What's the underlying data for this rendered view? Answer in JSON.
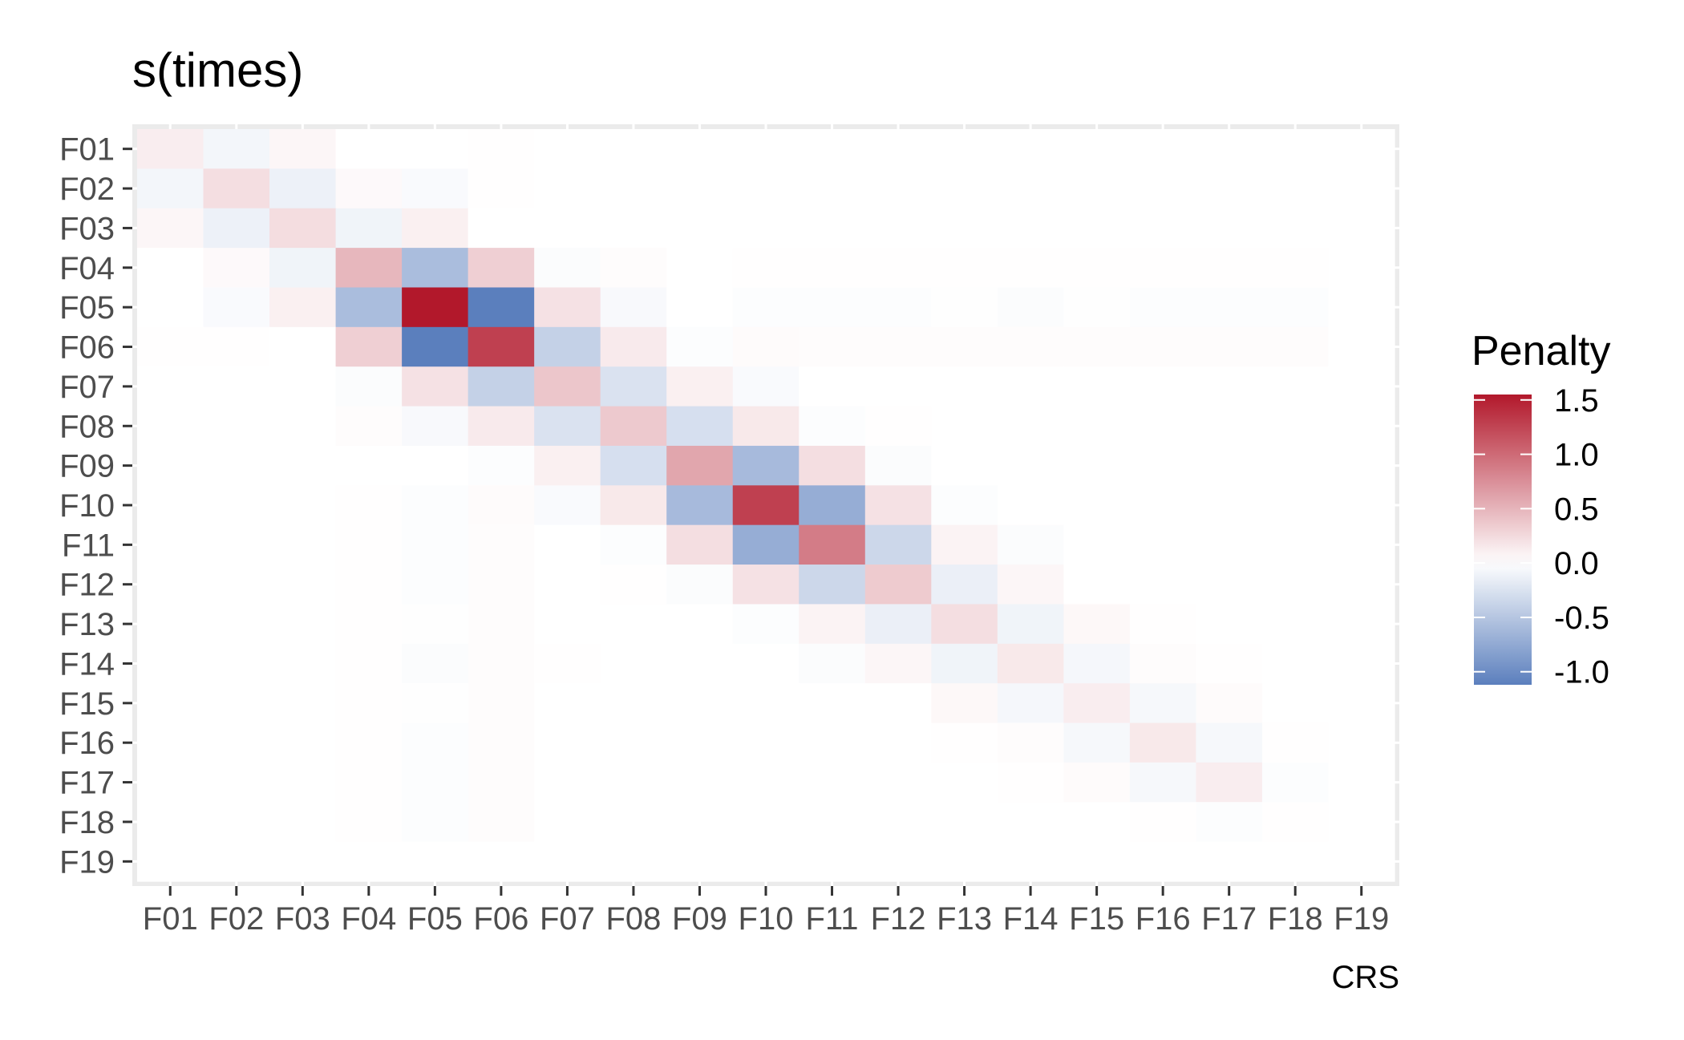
{
  "chart_data": {
    "type": "heatmap",
    "title": "s(times)",
    "xlabel": "CRS",
    "ylabel": "",
    "x_categories": [
      "F01",
      "F02",
      "F03",
      "F04",
      "F05",
      "F06",
      "F07",
      "F08",
      "F09",
      "F10",
      "F11",
      "F12",
      "F13",
      "F14",
      "F15",
      "F16",
      "F17",
      "F18",
      "F19"
    ],
    "y_categories": [
      "F01",
      "F02",
      "F03",
      "F04",
      "F05",
      "F06",
      "F07",
      "F08",
      "F09",
      "F10",
      "F11",
      "F12",
      "F13",
      "F14",
      "F15",
      "F16",
      "F17",
      "F18",
      "F19"
    ],
    "y_order": "top-to-bottom",
    "values": [
      [
        0.12,
        -0.08,
        0.06,
        0.0,
        0.0,
        0.01,
        0.0,
        0.0,
        0.0,
        0.0,
        0.0,
        0.0,
        0.0,
        0.0,
        0.0,
        0.0,
        0.0,
        0.0,
        0.0
      ],
      [
        -0.08,
        0.22,
        -0.12,
        0.04,
        -0.04,
        0.01,
        0.0,
        0.0,
        0.0,
        0.0,
        0.0,
        0.0,
        0.0,
        0.0,
        0.0,
        0.0,
        0.0,
        0.0,
        0.0
      ],
      [
        0.06,
        -0.12,
        0.23,
        -0.1,
        0.1,
        0.0,
        0.0,
        0.0,
        0.0,
        0.0,
        0.0,
        0.0,
        0.0,
        0.0,
        0.0,
        0.0,
        0.0,
        0.0,
        0.0
      ],
      [
        0.0,
        0.04,
        -0.1,
        0.48,
        -0.58,
        0.32,
        -0.03,
        0.02,
        0.0,
        0.01,
        0.01,
        0.01,
        0.01,
        0.01,
        0.01,
        0.01,
        0.01,
        0.01,
        0.0
      ],
      [
        0.0,
        -0.04,
        0.1,
        -0.58,
        1.55,
        -1.12,
        0.2,
        -0.05,
        0.0,
        -0.02,
        -0.02,
        -0.02,
        -0.01,
        -0.03,
        -0.01,
        -0.02,
        -0.02,
        -0.02,
        0.0
      ],
      [
        0.01,
        0.01,
        0.0,
        0.32,
        -1.12,
        1.28,
        -0.4,
        0.14,
        -0.02,
        0.03,
        0.02,
        0.02,
        0.02,
        0.02,
        0.02,
        0.02,
        0.02,
        0.02,
        0.0
      ],
      [
        0.0,
        0.0,
        0.0,
        -0.03,
        0.2,
        -0.4,
        0.38,
        -0.25,
        0.1,
        -0.04,
        0.0,
        0.0,
        0.0,
        0.0,
        0.0,
        0.0,
        0.0,
        0.0,
        0.0
      ],
      [
        0.0,
        0.0,
        0.0,
        0.02,
        -0.05,
        0.14,
        -0.25,
        0.36,
        -0.28,
        0.15,
        -0.02,
        0.01,
        0.0,
        0.0,
        0.0,
        0.0,
        0.0,
        0.0,
        0.0
      ],
      [
        0.0,
        0.0,
        0.0,
        0.0,
        0.0,
        -0.02,
        0.1,
        -0.28,
        0.6,
        -0.6,
        0.22,
        -0.03,
        0.0,
        0.0,
        0.0,
        0.0,
        0.0,
        0.0,
        0.0
      ],
      [
        0.0,
        0.0,
        0.0,
        0.01,
        -0.02,
        0.03,
        -0.04,
        0.15,
        -0.6,
        1.28,
        -0.72,
        0.2,
        -0.02,
        0.0,
        0.0,
        0.0,
        0.0,
        0.0,
        0.0
      ],
      [
        0.0,
        0.0,
        0.0,
        0.01,
        -0.02,
        0.02,
        0.0,
        -0.02,
        0.22,
        -0.72,
        0.88,
        -0.35,
        0.08,
        -0.03,
        0.0,
        0.0,
        0.0,
        0.0,
        0.0
      ],
      [
        0.0,
        0.0,
        0.0,
        0.01,
        -0.02,
        0.02,
        0.0,
        0.01,
        -0.03,
        0.2,
        -0.35,
        0.35,
        -0.14,
        0.06,
        0.0,
        0.0,
        0.0,
        0.0,
        0.0
      ],
      [
        0.0,
        0.0,
        0.0,
        0.01,
        -0.01,
        0.02,
        0.0,
        0.0,
        0.0,
        -0.02,
        0.08,
        -0.14,
        0.22,
        -0.1,
        0.05,
        0.01,
        0.0,
        0.0,
        0.0
      ],
      [
        0.0,
        0.0,
        0.0,
        0.01,
        -0.03,
        0.02,
        0.01,
        0.0,
        0.0,
        0.0,
        -0.03,
        0.06,
        -0.1,
        0.15,
        -0.07,
        0.02,
        0.01,
        0.0,
        0.0
      ],
      [
        0.0,
        0.0,
        0.0,
        0.01,
        -0.01,
        0.02,
        0.0,
        0.0,
        0.0,
        0.0,
        0.0,
        0.0,
        0.05,
        -0.07,
        0.12,
        -0.06,
        0.03,
        0.0,
        0.0
      ],
      [
        0.0,
        0.0,
        0.0,
        0.01,
        -0.02,
        0.02,
        0.0,
        0.0,
        0.0,
        0.0,
        0.0,
        0.0,
        0.01,
        0.02,
        -0.06,
        0.15,
        -0.06,
        0.01,
        0.0
      ],
      [
        0.0,
        0.0,
        0.0,
        0.01,
        -0.02,
        0.02,
        0.0,
        0.0,
        0.0,
        0.0,
        0.0,
        0.0,
        0.0,
        0.01,
        0.03,
        -0.06,
        0.12,
        -0.02,
        0.0
      ],
      [
        0.0,
        0.0,
        0.0,
        0.01,
        -0.02,
        0.02,
        0.0,
        0.0,
        0.0,
        0.0,
        0.0,
        0.0,
        0.0,
        0.0,
        0.0,
        0.01,
        -0.02,
        0.01,
        0.0
      ],
      [
        0.0,
        0.0,
        0.0,
        0.0,
        0.0,
        0.0,
        0.0,
        0.0,
        0.0,
        0.0,
        0.0,
        0.0,
        0.0,
        0.0,
        0.0,
        0.0,
        0.0,
        0.0,
        0.0
      ]
    ],
    "legend": {
      "title": "Penalty",
      "placement": "right",
      "breaks": [
        1.5,
        1.0,
        0.5,
        0.0,
        -0.5,
        -1.0
      ],
      "labels": [
        "1.5",
        "1.0",
        "0.5",
        "0.0",
        "-0.5",
        "-1.0"
      ],
      "range": [
        -1.12,
        1.55
      ]
    },
    "color_scale": {
      "low": "#5b7fbd",
      "mid": "#ffffff",
      "high": "#b2182b",
      "midpoint": 0.0
    },
    "grid": true,
    "panel_background": "#ebebeb"
  }
}
